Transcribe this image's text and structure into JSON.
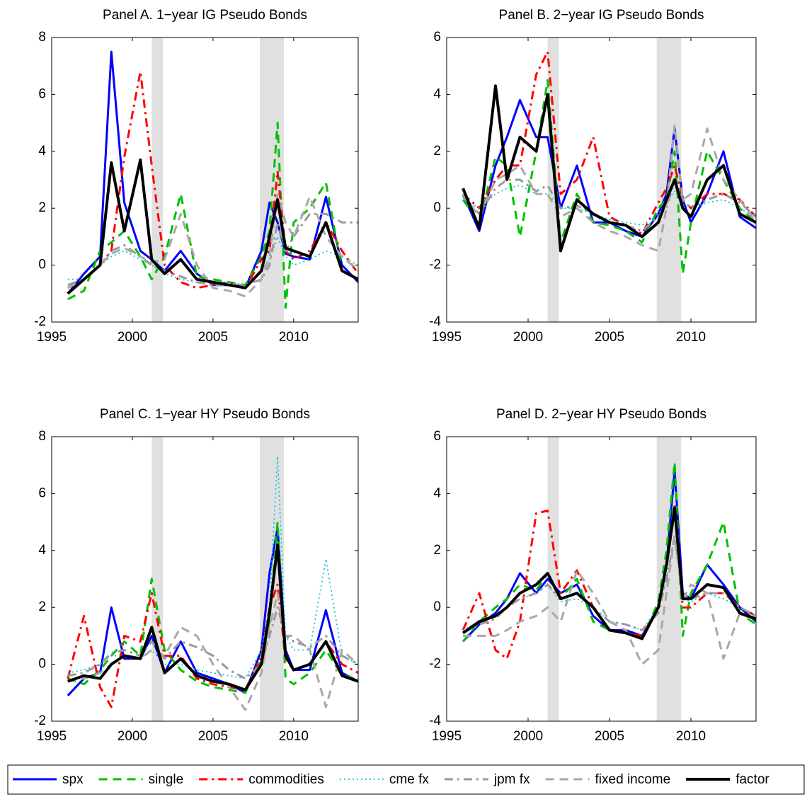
{
  "chart_data": [
    {
      "type": "line",
      "title": "Panel A. 1−year IG Pseudo Bonds",
      "x": [
        1996,
        1997,
        1998,
        1998.7,
        1999.5,
        2000.5,
        2001.2,
        2002,
        2003,
        2004,
        2005,
        2006,
        2007,
        2008,
        2008.5,
        2009,
        2009.5,
        2010,
        2011,
        2012,
        2013,
        2014
      ],
      "xlim": [
        1995,
        2014
      ],
      "xticks": [
        1995,
        2000,
        2005,
        2010
      ],
      "ylim": [
        -2,
        8
      ],
      "yticks": [
        -2,
        0,
        2,
        4,
        6,
        8
      ],
      "shaded": [
        [
          2001.2,
          2001.9
        ],
        [
          2007.9,
          2009.4
        ]
      ],
      "series": [
        {
          "name": "spx",
          "color": "#0000ff",
          "style": "solid",
          "values": [
            -1,
            -0.3,
            0.3,
            7.5,
            2.2,
            0.5,
            0.2,
            -0.2,
            0.5,
            -0.3,
            -0.7,
            -0.7,
            -0.8,
            0.5,
            2.2,
            1.5,
            0.4,
            0.3,
            0.2,
            2.4,
            0,
            -0.6
          ]
        },
        {
          "name": "single",
          "color": "#00c000",
          "style": "dashed",
          "values": [
            -1.2,
            -0.9,
            0.5,
            0.8,
            1.2,
            0.3,
            -0.5,
            0.3,
            2.5,
            -0.4,
            -0.5,
            -0.6,
            -0.7,
            0.3,
            1.2,
            5,
            -1.5,
            1.5,
            2,
            2.9,
            -0.2,
            -0.5
          ]
        },
        {
          "name": "commodities",
          "color": "#ff0000",
          "style": "dashdot",
          "values": [
            -0.8,
            -0.5,
            0,
            0.5,
            3.8,
            6.8,
            3.5,
            0,
            -0.6,
            -0.8,
            -0.7,
            -0.6,
            -0.8,
            0.2,
            0.5,
            3.3,
            0.5,
            0.2,
            0.5,
            1.5,
            0.5,
            -0.3
          ]
        },
        {
          "name": "cme fx",
          "color": "#00c8d8",
          "style": "dotted",
          "values": [
            -0.5,
            -0.5,
            0,
            0.3,
            0.5,
            0.2,
            0,
            -0.3,
            -0.5,
            -0.6,
            -0.6,
            -0.6,
            -0.7,
            -0.2,
            0.2,
            1,
            0.3,
            0,
            0.2,
            0.5,
            0.3,
            0
          ]
        },
        {
          "name": "jpm fx",
          "color": "#999999",
          "style": "dashdot",
          "values": [
            -0.7,
            -0.5,
            0,
            0.5,
            0.7,
            0.3,
            0,
            -0.2,
            -0.4,
            -0.6,
            -0.7,
            -0.7,
            -0.7,
            -0.5,
            0,
            1.5,
            0.5,
            1,
            1.8,
            1.8,
            1.5,
            1.5
          ]
        },
        {
          "name": "fixed income",
          "color": "#a8a8a8",
          "style": "dashed",
          "values": [
            -0.8,
            -0.5,
            0,
            0.4,
            0.6,
            0.3,
            0.1,
            0.2,
            1.8,
            0,
            -0.8,
            -0.9,
            -1.1,
            -0.5,
            0.3,
            2.5,
            1.5,
            1,
            2.4,
            1,
            0.3,
            -0.2
          ]
        },
        {
          "name": "factor",
          "color": "#000000",
          "style": "solid",
          "values": [
            -1,
            -0.5,
            0,
            3.6,
            1.2,
            3.7,
            0.2,
            -0.3,
            0.2,
            -0.5,
            -0.6,
            -0.7,
            -0.8,
            -0.2,
            1,
            2.3,
            0.6,
            0.5,
            0.3,
            1.5,
            -0.2,
            -0.5
          ]
        }
      ]
    },
    {
      "type": "line",
      "title": "Panel B. 2−year IG Pseudo Bonds",
      "x": [
        1996,
        1997,
        1998,
        1998.7,
        1999.5,
        2000.5,
        2001.2,
        2002,
        2003,
        2004,
        2005,
        2006,
        2007,
        2008,
        2008.5,
        2009,
        2009.5,
        2010,
        2011,
        2012,
        2013,
        2014
      ],
      "xlim": [
        1995,
        2014
      ],
      "xticks": [
        1995,
        2000,
        2005,
        2010
      ],
      "ylim": [
        -4,
        6
      ],
      "yticks": [
        -4,
        -2,
        0,
        2,
        4,
        6
      ],
      "shaded": [
        [
          2001.2,
          2001.9
        ],
        [
          2007.9,
          2009.4
        ]
      ],
      "series": [
        {
          "name": "spx",
          "color": "#0000ff",
          "style": "solid",
          "values": [
            0.5,
            -0.8,
            1.5,
            2.5,
            3.8,
            2.5,
            2.5,
            0,
            1.5,
            -0.5,
            -0.5,
            -0.8,
            -1,
            -0.2,
            0.5,
            2.8,
            0.3,
            -0.5,
            0.5,
            2,
            -0.3,
            -0.7
          ]
        },
        {
          "name": "single",
          "color": "#00c000",
          "style": "dashed",
          "values": [
            0.3,
            -0.5,
            1.8,
            1.5,
            -1,
            2,
            4.5,
            -1.2,
            0.5,
            -0.5,
            -0.6,
            -0.8,
            -1.2,
            0,
            0.3,
            2,
            -2.3,
            -0.5,
            2,
            1,
            0,
            -0.5
          ]
        },
        {
          "name": "commodities",
          "color": "#ff0000",
          "style": "dashdot",
          "values": [
            0.5,
            0,
            1,
            1.5,
            1.5,
            4.7,
            5.5,
            0.5,
            1,
            2.5,
            -0.3,
            -0.6,
            -0.9,
            0.2,
            0.7,
            1.5,
            0.3,
            0,
            0.5,
            0.5,
            0.3,
            -0.3
          ]
        },
        {
          "name": "cme fx",
          "color": "#00c8d8",
          "style": "dotted",
          "values": [
            0.3,
            0,
            0.5,
            0.7,
            0.8,
            0.5,
            0.5,
            0,
            0,
            -0.2,
            -0.4,
            -0.5,
            -0.6,
            -0.2,
            0.2,
            0.6,
            0.2,
            0,
            0.2,
            0.3,
            0,
            -0.3
          ]
        },
        {
          "name": "jpm fx",
          "color": "#999999",
          "style": "dashdot",
          "values": [
            0.4,
            -0.2,
            0.7,
            1,
            1,
            0.6,
            0.8,
            0,
            0.1,
            -0.2,
            -0.5,
            -0.6,
            -0.8,
            -0.3,
            0,
            1,
            0.3,
            0,
            0.3,
            0.5,
            0.2,
            -0.3
          ]
        },
        {
          "name": "fixed income",
          "color": "#a8a8a8",
          "style": "dashed",
          "values": [
            0.5,
            -0.3,
            1,
            1.2,
            1.5,
            0.5,
            0.5,
            -0.3,
            0,
            -0.5,
            -0.8,
            -1,
            -1.3,
            -1.5,
            0,
            2.9,
            0.3,
            0.5,
            2.8,
            1,
            0.3,
            -0.5
          ]
        },
        {
          "name": "factor",
          "color": "#000000",
          "style": "solid",
          "values": [
            0.7,
            -0.7,
            4.3,
            1,
            2.5,
            2,
            4,
            -1.5,
            0.3,
            -0.2,
            -0.5,
            -0.6,
            -1,
            -0.5,
            0.3,
            1,
            0,
            -0.3,
            1,
            1.5,
            -0.2,
            -0.5
          ]
        }
      ]
    },
    {
      "type": "line",
      "title": "Panel C. 1−year HY Pseudo Bonds",
      "x": [
        1996,
        1997,
        1998,
        1998.7,
        1999.5,
        2000.5,
        2001.2,
        2002,
        2003,
        2004,
        2005,
        2006,
        2007,
        2008,
        2008.5,
        2009,
        2009.5,
        2010,
        2011,
        2012,
        2013,
        2014
      ],
      "xlim": [
        1995,
        2014
      ],
      "xticks": [
        1995,
        2000,
        2005,
        2010
      ],
      "ylim": [
        -2,
        8
      ],
      "yticks": [
        -2,
        0,
        2,
        4,
        6,
        8
      ],
      "shaded": [
        [
          2001.2,
          2001.9
        ],
        [
          2007.9,
          2009.4
        ]
      ],
      "series": [
        {
          "name": "spx",
          "color": "#0000ff",
          "style": "solid",
          "values": [
            -1.1,
            -0.5,
            -0.3,
            2,
            0.2,
            0.2,
            1,
            -0.3,
            0.8,
            -0.3,
            -0.5,
            -0.7,
            -1,
            0.5,
            3.2,
            4.8,
            0.5,
            -0.2,
            -0.2,
            1.9,
            -0.3,
            -0.6
          ]
        },
        {
          "name": "single",
          "color": "#00c000",
          "style": "dashed",
          "values": [
            -0.5,
            -0.7,
            -0.2,
            0.3,
            0.8,
            0.3,
            3,
            0.5,
            -0.2,
            -0.6,
            -0.8,
            -0.9,
            -1,
            0.2,
            1.5,
            5,
            -0.5,
            -0.7,
            -0.3,
            0.5,
            -0.4,
            -0.5
          ]
        },
        {
          "name": "commodities",
          "color": "#ff0000",
          "style": "dashdot",
          "values": [
            -0.5,
            1.7,
            -0.8,
            -1.5,
            1,
            0.8,
            2.5,
            0.3,
            0.3,
            -0.5,
            -0.7,
            -0.8,
            -0.9,
            0.3,
            2,
            2.8,
            0.2,
            -0.2,
            0,
            0.8,
            0,
            -0.3
          ]
        },
        {
          "name": "cme fx",
          "color": "#00c8d8",
          "style": "dotted",
          "values": [
            -0.3,
            -0.2,
            0,
            0.3,
            0.3,
            0.2,
            0.5,
            0,
            0,
            -0.2,
            -0.3,
            -0.4,
            -0.5,
            0.5,
            2,
            7.3,
            1,
            0.5,
            0.5,
            3.7,
            0.3,
            0
          ]
        },
        {
          "name": "jpm fx",
          "color": "#999999",
          "style": "dashdot",
          "values": [
            -0.4,
            -0.3,
            0,
            0.4,
            0.5,
            0.3,
            0.8,
            0.2,
            0.8,
            0.6,
            0.3,
            -0.2,
            -0.5,
            0,
            1,
            2,
            1,
            0.8,
            0.6,
            1,
            0.3,
            0
          ]
        },
        {
          "name": "fixed income",
          "color": "#a8a8a8",
          "style": "dashed",
          "values": [
            -0.6,
            -0.5,
            -0.3,
            0,
            0.3,
            0.2,
            0.5,
            0.3,
            1.3,
            1,
            0,
            -0.8,
            -1.6,
            -0.3,
            1.3,
            2.5,
            1,
            1,
            0.5,
            -1.5,
            0.5,
            0
          ]
        },
        {
          "name": "factor",
          "color": "#000000",
          "style": "solid",
          "values": [
            -0.6,
            -0.4,
            -0.5,
            0,
            0.3,
            0.2,
            1.3,
            -0.3,
            0.2,
            -0.4,
            -0.6,
            -0.7,
            -0.9,
            0,
            1.8,
            4.2,
            0.3,
            -0.2,
            0,
            0.8,
            -0.4,
            -0.6
          ]
        }
      ]
    },
    {
      "type": "line",
      "title": "Panel D. 2−year HY Pseudo Bonds",
      "x": [
        1996,
        1997,
        1998,
        1998.7,
        1999.5,
        2000.5,
        2001.2,
        2002,
        2003,
        2004,
        2005,
        2006,
        2007,
        2008,
        2008.5,
        2009,
        2009.5,
        2010,
        2011,
        2012,
        2013,
        2014
      ],
      "xlim": [
        1995,
        2014
      ],
      "xticks": [
        1995,
        2000,
        2005,
        2010
      ],
      "ylim": [
        -4,
        6
      ],
      "yticks": [
        -4,
        -2,
        0,
        2,
        4,
        6
      ],
      "shaded": [
        [
          2001.2,
          2001.9
        ],
        [
          2007.9,
          2009.4
        ]
      ],
      "series": [
        {
          "name": "spx",
          "color": "#0000ff",
          "style": "solid",
          "values": [
            -1.2,
            -0.6,
            -0.2,
            0.3,
            1.2,
            0.5,
            1,
            0.5,
            0.8,
            -0.3,
            -0.8,
            -0.8,
            -1,
            0,
            1.5,
            4.8,
            0.5,
            0.3,
            1.5,
            0.8,
            0,
            -0.5
          ]
        },
        {
          "name": "single",
          "color": "#00c000",
          "style": "dashed",
          "values": [
            -1.2,
            -0.5,
            0,
            0.3,
            0.8,
            0.6,
            1.2,
            0.3,
            1,
            -0.5,
            -0.8,
            -0.9,
            -1.1,
            0.2,
            2,
            5.1,
            -1,
            0.5,
            1.5,
            3,
            -0.2,
            -0.6
          ]
        },
        {
          "name": "commodities",
          "color": "#ff0000",
          "style": "dashdot",
          "values": [
            -0.8,
            0.5,
            -1.5,
            -1.8,
            -0.5,
            3.3,
            3.4,
            0.5,
            1.3,
            0,
            -0.8,
            -0.9,
            -1,
            0,
            1.5,
            3.6,
            0,
            0,
            0.5,
            0.5,
            0,
            -0.3
          ]
        },
        {
          "name": "cme fx",
          "color": "#00c8d8",
          "style": "dotted",
          "values": [
            -0.8,
            -0.5,
            -0.3,
            0,
            0.3,
            0.5,
            0.8,
            0.2,
            0.3,
            0,
            -0.5,
            -0.6,
            -0.8,
            0,
            1,
            2.5,
            0.3,
            0.2,
            0.5,
            0.3,
            0,
            -0.3
          ]
        },
        {
          "name": "jpm fx",
          "color": "#999999",
          "style": "dashdot",
          "values": [
            -0.9,
            -0.6,
            -0.4,
            0,
            0.3,
            0.5,
            0.8,
            0.3,
            0.5,
            0,
            -0.5,
            -0.6,
            -0.8,
            -0.2,
            1,
            2.5,
            0.5,
            0.3,
            0.5,
            0.5,
            0,
            -0.3
          ]
        },
        {
          "name": "fixed income",
          "color": "#a8a8a8",
          "style": "dashed",
          "values": [
            -1,
            -1,
            -1,
            -0.8,
            -0.5,
            -0.3,
            0,
            -0.5,
            1.3,
            0.5,
            -0.5,
            -0.8,
            -2,
            -1.5,
            0.5,
            2.5,
            0.3,
            0.8,
            0.5,
            -1.8,
            -0.2,
            -0.5
          ]
        },
        {
          "name": "factor",
          "color": "#000000",
          "style": "solid",
          "values": [
            -0.9,
            -0.5,
            -0.3,
            0,
            0.5,
            0.8,
            1.2,
            0.3,
            0.5,
            0,
            -0.8,
            -0.9,
            -1.1,
            0,
            1.5,
            3.5,
            0.3,
            0.3,
            0.8,
            0.7,
            -0.2,
            -0.4
          ]
        }
      ]
    }
  ]
}
